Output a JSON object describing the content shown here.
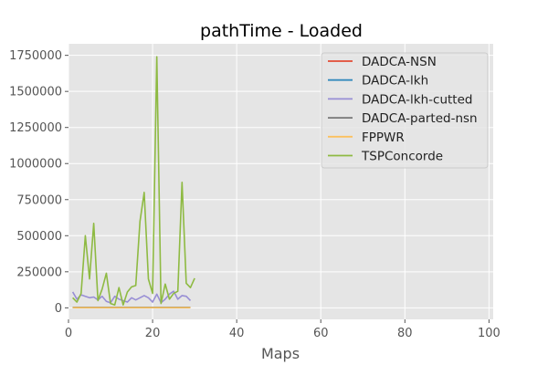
{
  "chart_data": {
    "type": "line",
    "title": "pathTime - Loaded",
    "xlabel": "Maps",
    "ylabel": "",
    "xlim": [
      0,
      101
    ],
    "ylim": [
      -80000,
      1830000
    ],
    "xticks": [
      0,
      20,
      40,
      60,
      80,
      100
    ],
    "yticks": [
      0,
      250000,
      500000,
      750000,
      1000000,
      1250000,
      1500000,
      1750000
    ],
    "grid": true,
    "legend_position": "top-right",
    "series": [
      {
        "name": "DADCA-NSN",
        "color": "#e24a33",
        "x": [
          1,
          2,
          3,
          4,
          5,
          6,
          7,
          8,
          9,
          10,
          11,
          12,
          13,
          14,
          15,
          16,
          17,
          18,
          19,
          20,
          21,
          22,
          23,
          24,
          25,
          26,
          27,
          28,
          29
        ],
        "values": [
          2000,
          2000,
          2000,
          2000,
          2000,
          2000,
          2000,
          2000,
          2000,
          2000,
          2000,
          2000,
          2000,
          2000,
          2000,
          2000,
          2000,
          2000,
          2000,
          2000,
          2000,
          2000,
          2000,
          2000,
          2000,
          2000,
          2000,
          2000,
          2000
        ]
      },
      {
        "name": "DADCA-lkh",
        "color": "#348abd",
        "x": [
          1,
          2,
          3,
          4,
          5,
          6,
          7,
          8,
          9,
          10,
          11,
          12,
          13,
          14,
          15,
          16,
          17,
          18,
          19,
          20,
          21,
          22,
          23,
          24,
          25,
          26,
          27,
          28,
          29
        ],
        "values": [
          3000,
          3000,
          3000,
          3000,
          3000,
          3000,
          3000,
          3000,
          3000,
          3000,
          3000,
          3000,
          3000,
          3000,
          3000,
          3000,
          3000,
          3000,
          3000,
          3000,
          3000,
          3000,
          3000,
          3000,
          3000,
          3000,
          3000,
          3000,
          3000
        ]
      },
      {
        "name": "DADCA-lkh-cutted",
        "color": "#988ed5",
        "x": [
          1,
          2,
          3,
          4,
          5,
          6,
          7,
          8,
          9,
          10,
          11,
          12,
          13,
          14,
          15,
          16,
          17,
          18,
          19,
          20,
          21,
          22,
          23,
          24,
          25,
          26,
          27,
          28,
          29
        ],
        "values": [
          110000,
          60000,
          90000,
          80000,
          70000,
          75000,
          55000,
          80000,
          45000,
          35000,
          80000,
          60000,
          50000,
          40000,
          70000,
          55000,
          70000,
          85000,
          70000,
          40000,
          95000,
          35000,
          60000,
          95000,
          115000,
          60000,
          85000,
          80000,
          50000
        ]
      },
      {
        "name": "DADCA-parted-nsn",
        "color": "#777777",
        "x": [
          1,
          2,
          3,
          4,
          5,
          6,
          7,
          8,
          9,
          10,
          11,
          12,
          13,
          14,
          15,
          16,
          17,
          18,
          19,
          20,
          21,
          22,
          23,
          24,
          25,
          26,
          27,
          28,
          29
        ],
        "values": [
          2500,
          2500,
          2500,
          2500,
          2500,
          2500,
          2500,
          2500,
          2500,
          2500,
          2500,
          2500,
          2500,
          2500,
          2500,
          2500,
          2500,
          2500,
          2500,
          2500,
          2500,
          2500,
          2500,
          2500,
          2500,
          2500,
          2500,
          2500,
          2500
        ]
      },
      {
        "name": "FPPWR",
        "color": "#fbc15e",
        "x": [
          1,
          2,
          3,
          4,
          5,
          6,
          7,
          8,
          9,
          10,
          11,
          12,
          13,
          14,
          15,
          16,
          17,
          18,
          19,
          20,
          21,
          22,
          23,
          24,
          25,
          26,
          27,
          28,
          29
        ],
        "values": [
          1000,
          1000,
          1000,
          1000,
          1000,
          1000,
          1000,
          1000,
          1000,
          1000,
          1000,
          1000,
          1000,
          1000,
          1000,
          1000,
          1000,
          1000,
          1000,
          1000,
          1000,
          1000,
          1000,
          1000,
          1000,
          1000,
          1000,
          1000,
          1000
        ]
      },
      {
        "name": "TSPConcorde",
        "color": "#8eba42",
        "x": [
          1,
          2,
          3,
          4,
          5,
          6,
          7,
          8,
          9,
          10,
          11,
          12,
          13,
          14,
          15,
          16,
          17,
          18,
          19,
          20,
          21,
          22,
          23,
          24,
          25,
          26,
          27,
          28,
          29,
          30
        ],
        "values": [
          70000,
          40000,
          100000,
          500000,
          200000,
          585000,
          50000,
          130000,
          240000,
          30000,
          20000,
          140000,
          20000,
          110000,
          145000,
          155000,
          600000,
          800000,
          200000,
          100000,
          1740000,
          30000,
          165000,
          60000,
          100000,
          115000,
          870000,
          170000,
          140000,
          205000
        ]
      }
    ]
  }
}
